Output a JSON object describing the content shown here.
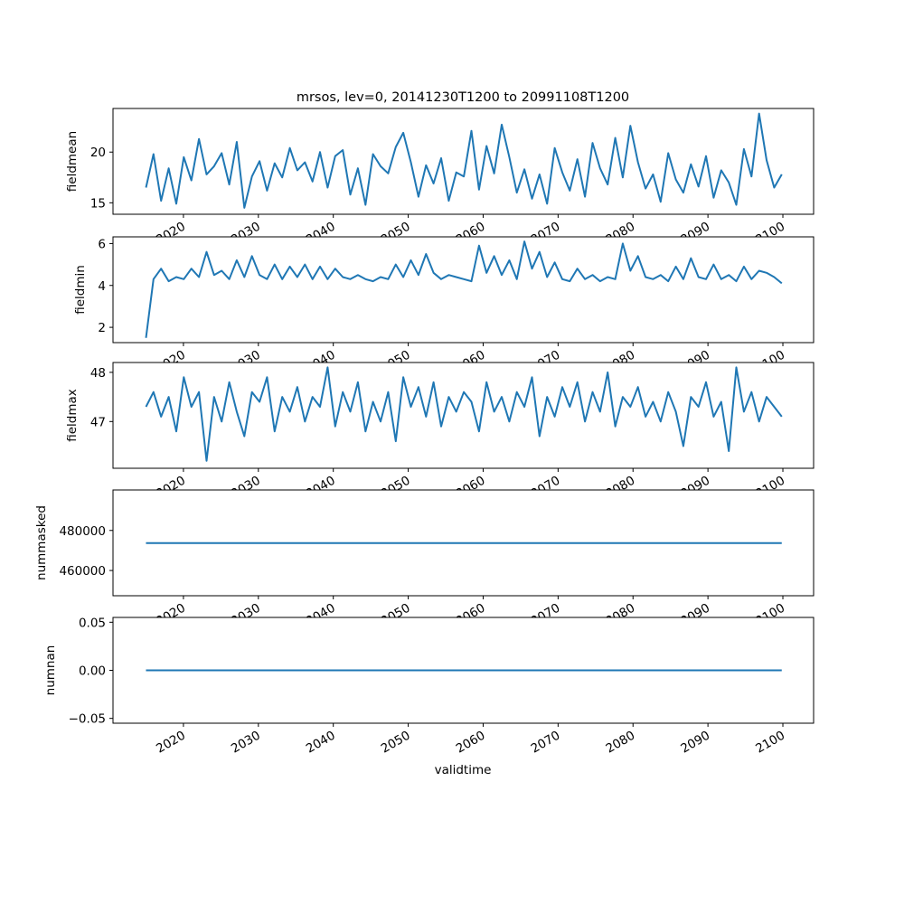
{
  "chart_data": {
    "type": "line",
    "title": "mrsos, lev=0, 20141230T1200 to 20991108T1200",
    "xlabel": "validtime",
    "x_start": 2015.0,
    "x_end": 2099.85,
    "xlim": [
      2010.6,
      2104.1
    ],
    "xticks": [
      2020,
      2030,
      2040,
      2050,
      2060,
      2070,
      2080,
      2090,
      2100
    ],
    "xtick_labels": [
      "2020",
      "2030",
      "2040",
      "2050",
      "2060",
      "2070",
      "2080",
      "2090",
      "2100"
    ],
    "line_color": "#1f77b4",
    "panels": [
      {
        "ylabel": "fieldmean",
        "ylim": [
          13.87,
          24.3
        ],
        "yticks": [
          15,
          20
        ],
        "ytick_labels": [
          "15",
          "20"
        ],
        "values": [
          16.5,
          19.8,
          15.2,
          18.4,
          14.9,
          19.5,
          17.2,
          21.3,
          17.8,
          18.6,
          19.9,
          16.8,
          21.0,
          14.5,
          17.6,
          19.1,
          16.2,
          18.9,
          17.5,
          20.4,
          18.2,
          19.0,
          17.1,
          20.0,
          16.5,
          19.6,
          20.2,
          15.8,
          18.4,
          14.8,
          19.8,
          18.6,
          17.9,
          20.5,
          21.9,
          19.0,
          15.6,
          18.7,
          16.9,
          19.4,
          15.2,
          18.0,
          17.6,
          22.1,
          16.3,
          20.6,
          17.9,
          22.7,
          19.5,
          16.0,
          18.3,
          15.4,
          17.8,
          14.9,
          20.4,
          18.0,
          16.2,
          19.3,
          15.6,
          20.9,
          18.4,
          16.8,
          21.4,
          17.5,
          22.6,
          19.0,
          16.4,
          17.8,
          15.1,
          19.9,
          17.3,
          16.0,
          18.8,
          16.6,
          19.6,
          15.5,
          18.2,
          17.0,
          14.8,
          20.3,
          17.6,
          23.8,
          19.2,
          16.5,
          17.8
        ]
      },
      {
        "ylabel": "fieldmin",
        "ylim": [
          1.27,
          6.32
        ],
        "yticks": [
          2,
          4,
          6
        ],
        "ytick_labels": [
          "2",
          "4",
          "6"
        ],
        "values": [
          1.5,
          4.3,
          4.8,
          4.2,
          4.4,
          4.3,
          4.8,
          4.4,
          5.6,
          4.5,
          4.7,
          4.3,
          5.2,
          4.4,
          5.4,
          4.5,
          4.3,
          5.0,
          4.3,
          4.9,
          4.4,
          5.0,
          4.3,
          4.9,
          4.3,
          4.8,
          4.4,
          4.3,
          4.5,
          4.3,
          4.2,
          4.4,
          4.3,
          5.0,
          4.4,
          5.2,
          4.5,
          5.5,
          4.6,
          4.3,
          4.5,
          4.4,
          4.3,
          4.2,
          5.9,
          4.6,
          5.4,
          4.5,
          5.2,
          4.3,
          6.1,
          4.8,
          5.6,
          4.4,
          5.1,
          4.3,
          4.2,
          4.8,
          4.3,
          4.5,
          4.2,
          4.4,
          4.3,
          6.0,
          4.7,
          5.4,
          4.4,
          4.3,
          4.5,
          4.2,
          4.9,
          4.3,
          5.3,
          4.4,
          4.3,
          5.0,
          4.3,
          4.5,
          4.2,
          4.9,
          4.3,
          4.7,
          4.6,
          4.4,
          4.1
        ]
      },
      {
        "ylabel": "fieldmax",
        "ylim": [
          46.05,
          48.2
        ],
        "yticks": [
          47,
          48
        ],
        "ytick_labels": [
          "47",
          "48"
        ],
        "values": [
          47.3,
          47.6,
          47.1,
          47.5,
          46.8,
          47.9,
          47.3,
          47.6,
          46.2,
          47.5,
          47.0,
          47.8,
          47.2,
          46.7,
          47.6,
          47.4,
          47.9,
          46.8,
          47.5,
          47.2,
          47.7,
          47.0,
          47.5,
          47.3,
          48.1,
          46.9,
          47.6,
          47.2,
          47.8,
          46.8,
          47.4,
          47.0,
          47.6,
          46.6,
          47.9,
          47.3,
          47.7,
          47.1,
          47.8,
          46.9,
          47.5,
          47.2,
          47.6,
          47.4,
          46.8,
          47.8,
          47.2,
          47.5,
          47.0,
          47.6,
          47.3,
          47.9,
          46.7,
          47.5,
          47.1,
          47.7,
          47.3,
          47.8,
          47.0,
          47.6,
          47.2,
          48.0,
          46.9,
          47.5,
          47.3,
          47.7,
          47.1,
          47.4,
          47.0,
          47.6,
          47.2,
          46.5,
          47.5,
          47.3,
          47.8,
          47.1,
          47.4,
          46.4,
          48.1,
          47.2,
          47.6,
          47.0,
          47.5,
          47.3,
          47.1
        ]
      },
      {
        "ylabel": "nummasked",
        "ylim": [
          447400,
          500200
        ],
        "yticks": [
          460000,
          480000
        ],
        "ytick_labels": [
          "460000",
          "480000"
        ],
        "constant": 473700
      },
      {
        "ylabel": "numnan",
        "ylim": [
          -0.055,
          0.055
        ],
        "yticks": [
          -0.05,
          0.0,
          0.05
        ],
        "ytick_labels": [
          "−0.05",
          "0.00",
          "0.05"
        ],
        "constant": 0
      }
    ]
  }
}
